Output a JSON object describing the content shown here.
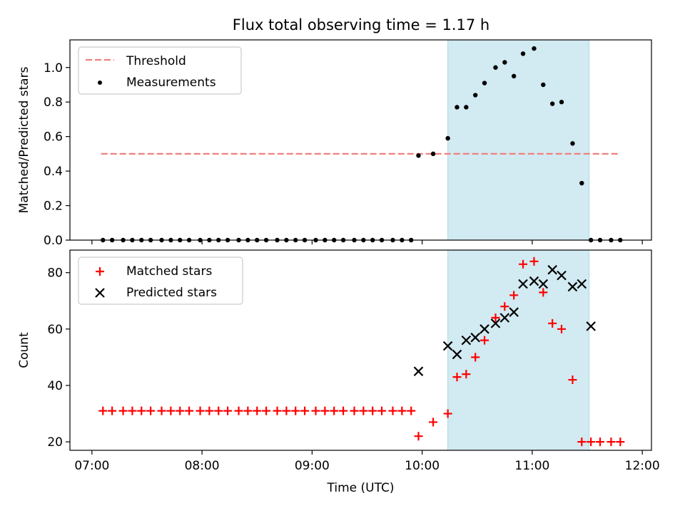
{
  "title": "Flux total observing time = 1.17 h",
  "colors": {
    "threshold": "#f08080",
    "measurement": "#000000",
    "matched": "#ff0000",
    "predicted": "#000000",
    "span": "#add8e6"
  },
  "chart_data": [
    {
      "type": "scatter",
      "ylabel": "Matched/Predicted stars",
      "xlim": [
        "06:48",
        "12:05"
      ],
      "ylim": [
        0,
        1.16
      ],
      "yticks": [
        "0.0",
        "0.2",
        "0.4",
        "0.6",
        "0.8",
        "1.0"
      ],
      "highlight_span": [
        "10:14",
        "11:31"
      ],
      "legend": [
        "Threshold",
        "Measurements"
      ],
      "legend_position": "upper left",
      "threshold": {
        "name": "Threshold",
        "y": 0.5,
        "x_range": [
          "07:05",
          "11:48"
        ]
      },
      "series": [
        {
          "name": "Measurements",
          "x": [
            "07:06",
            "07:11",
            "07:17",
            "07:22",
            "07:27",
            "07:32",
            "07:38",
            "07:43",
            "07:48",
            "07:53",
            "07:59",
            "08:04",
            "08:09",
            "08:14",
            "08:20",
            "08:25",
            "08:30",
            "08:35",
            "08:41",
            "08:46",
            "08:51",
            "08:56",
            "09:02",
            "09:07",
            "09:12",
            "09:17",
            "09:23",
            "09:28",
            "09:33",
            "09:38",
            "09:44",
            "09:49",
            "09:54",
            "09:58",
            "10:06",
            "10:14",
            "10:19",
            "10:24",
            "10:29",
            "10:34",
            "10:40",
            "10:45",
            "10:50",
            "10:55",
            "11:01",
            "11:06",
            "11:11",
            "11:16",
            "11:22",
            "11:27",
            "11:32",
            "11:37",
            "11:43",
            "11:48"
          ],
          "y": [
            0,
            0,
            0,
            0,
            0,
            0,
            0,
            0,
            0,
            0,
            0,
            0,
            0,
            0,
            0,
            0,
            0,
            0,
            0,
            0,
            0,
            0,
            0,
            0,
            0,
            0,
            0,
            0,
            0,
            0,
            0,
            0,
            0,
            0.49,
            0.5,
            0.59,
            0.77,
            0.77,
            0.84,
            0.91,
            1.0,
            1.03,
            0.95,
            1.08,
            1.11,
            0.9,
            0.79,
            0.8,
            0.56,
            0.33,
            0,
            0,
            0,
            0
          ]
        }
      ]
    },
    {
      "type": "scatter",
      "xlabel": "Time (UTC)",
      "ylabel": "Count",
      "xlim": [
        "06:48",
        "12:05"
      ],
      "ylim": [
        17,
        88
      ],
      "yticks": [
        "20",
        "40",
        "60",
        "80"
      ],
      "xticks": [
        "07:00",
        "08:00",
        "09:00",
        "10:00",
        "11:00",
        "12:00"
      ],
      "highlight_span": [
        "10:14",
        "11:31"
      ],
      "legend": [
        "Matched stars",
        "Predicted stars"
      ],
      "legend_position": "upper left",
      "series": [
        {
          "name": "Matched stars",
          "marker": "+",
          "x": [
            "07:06",
            "07:11",
            "07:17",
            "07:22",
            "07:27",
            "07:32",
            "07:38",
            "07:43",
            "07:48",
            "07:53",
            "07:59",
            "08:04",
            "08:09",
            "08:14",
            "08:20",
            "08:25",
            "08:30",
            "08:35",
            "08:41",
            "08:46",
            "08:51",
            "08:56",
            "09:02",
            "09:07",
            "09:12",
            "09:17",
            "09:23",
            "09:28",
            "09:33",
            "09:38",
            "09:44",
            "09:49",
            "09:54",
            "09:58",
            "10:06",
            "10:14",
            "10:19",
            "10:24",
            "10:29",
            "10:34",
            "10:40",
            "10:45",
            "10:50",
            "10:55",
            "11:01",
            "11:06",
            "11:11",
            "11:16",
            "11:22",
            "11:27",
            "11:32",
            "11:37",
            "11:43",
            "11:48"
          ],
          "y": [
            31,
            31,
            31,
            31,
            31,
            31,
            31,
            31,
            31,
            31,
            31,
            31,
            31,
            31,
            31,
            31,
            31,
            31,
            31,
            31,
            31,
            31,
            31,
            31,
            31,
            31,
            31,
            31,
            31,
            31,
            31,
            31,
            31,
            22,
            27,
            30,
            43,
            44,
            50,
            56,
            64,
            68,
            72,
            83,
            84,
            73,
            62,
            60,
            42,
            20,
            20,
            20,
            20,
            20
          ]
        },
        {
          "name": "Predicted stars",
          "marker": "x",
          "x": [
            "09:58",
            "10:14",
            "10:19",
            "10:24",
            "10:29",
            "10:34",
            "10:40",
            "10:45",
            "10:50",
            "10:55",
            "11:01",
            "11:06",
            "11:11",
            "11:16",
            "11:22",
            "11:27",
            "11:32"
          ],
          "y": [
            45,
            54,
            51,
            56,
            57,
            60,
            62,
            64,
            66,
            76,
            77,
            76,
            81,
            79,
            75,
            76,
            61
          ]
        }
      ]
    }
  ]
}
